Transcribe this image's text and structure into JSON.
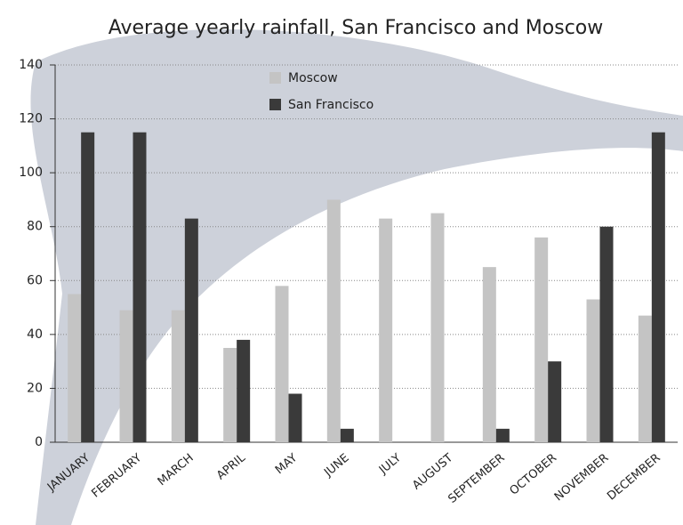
{
  "chart_data": {
    "type": "bar",
    "title": "Average yearly rainfall, San Francisco and Moscow",
    "categories": [
      "JANUARY",
      "FEBRUARY",
      "MARCH",
      "APRIL",
      "MAY",
      "JUNE",
      "JULY",
      "AUGUST",
      "SEPTEMBER",
      "OCTOBER",
      "NOVEMBER",
      "DECEMBER"
    ],
    "series": [
      {
        "name": "Moscow",
        "color": "#c4c4c4",
        "values": [
          55,
          49,
          49,
          35,
          58,
          90,
          83,
          85,
          65,
          76,
          53,
          47
        ]
      },
      {
        "name": "San Francisco",
        "color": "#3a3a3a",
        "values": [
          115,
          115,
          83,
          38,
          18,
          5,
          0,
          0,
          5,
          30,
          80,
          115
        ]
      }
    ],
    "ylim": [
      0,
      140
    ],
    "yticks": [
      0,
      20,
      40,
      60,
      80,
      100,
      120,
      140
    ],
    "grid": true
  }
}
